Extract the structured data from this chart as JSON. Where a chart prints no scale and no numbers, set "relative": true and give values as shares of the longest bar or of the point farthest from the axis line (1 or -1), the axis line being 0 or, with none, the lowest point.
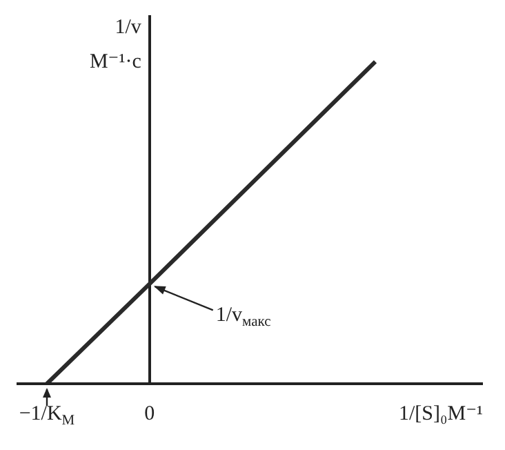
{
  "chart_data": {
    "type": "line",
    "relative": true,
    "ylabel": "1/v\nM⁻¹·c",
    "xlabel": "1/[S]₀M⁻¹",
    "categories": [
      "−1/K$_{M}$",
      null,
      null,
      null,
      null,
      "0",
      null,
      null,
      null,
      null,
      null,
      null,
      null,
      null,
      null,
      null,
      null
    ],
    "values": [
      0,
      null,
      null,
      null,
      null,
      0.31,
      null,
      null,
      null,
      null,
      null,
      null,
      null,
      null,
      null,
      null,
      1
    ],
    "color": "#2a2a2a",
    "marker": "none",
    "line_style": "solid",
    "legend": false,
    "annotations": [
      {
        "text": "1/v$_{макс}$",
        "x": "0",
        "y": 0.31
      }
    ]
  }
}
